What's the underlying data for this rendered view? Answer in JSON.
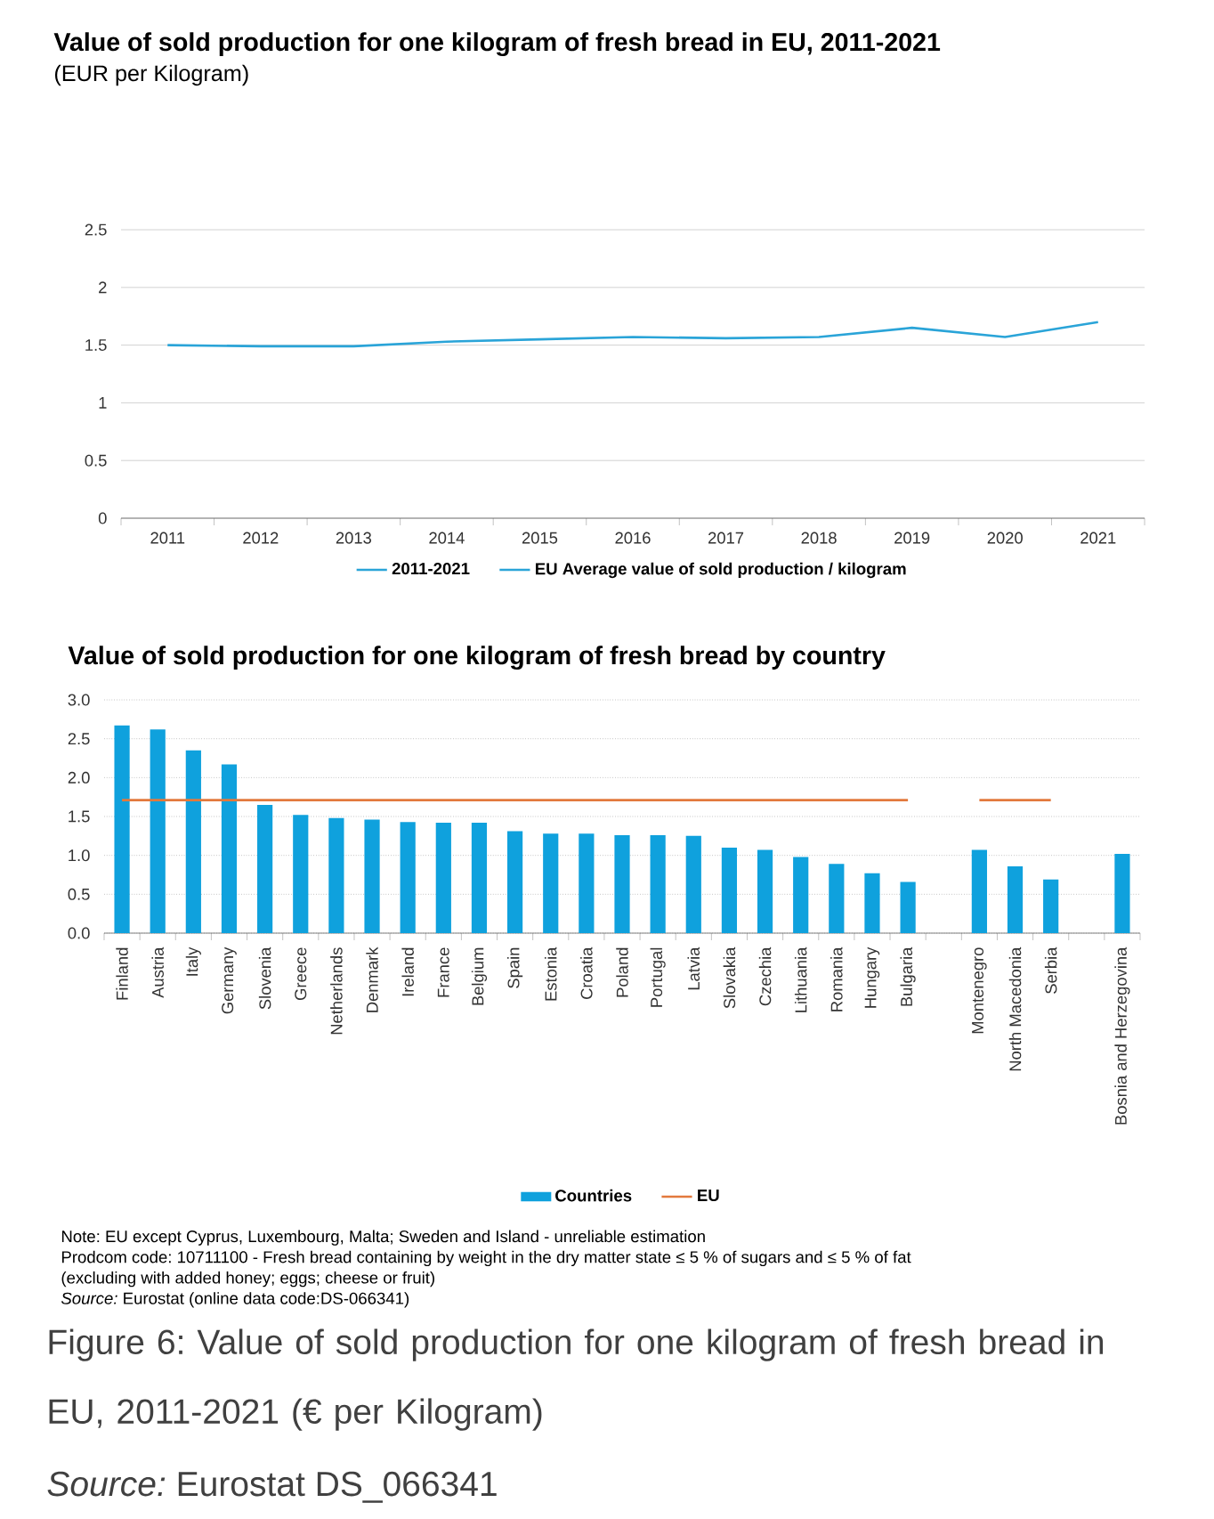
{
  "chart_data": [
    {
      "type": "line",
      "title": "Value of sold production for one kilogram of fresh bread in EU, 2011-2021",
      "subtitle": "(EUR per Kilogram)",
      "categories": [
        "2011",
        "2012",
        "2013",
        "2014",
        "2015",
        "2016",
        "2017",
        "2018",
        "2019",
        "2020",
        "2021"
      ],
      "series": [
        {
          "name": "2011-2021",
          "color": "#2aa4d8",
          "values": [
            null,
            null,
            null,
            null,
            null,
            null,
            null,
            null,
            null,
            null,
            null
          ]
        },
        {
          "name": "EU Average value of sold production / kilogram",
          "color": "#2aa4d8",
          "values": [
            1.5,
            1.49,
            1.49,
            1.53,
            1.55,
            1.57,
            1.56,
            1.57,
            1.65,
            1.57,
            1.7
          ]
        }
      ],
      "ylim": [
        0,
        2.5
      ],
      "yticks": [
        0,
        0.5,
        1,
        1.5,
        2,
        2.5
      ],
      "grid": "y",
      "legend": "bottom"
    },
    {
      "type": "bar",
      "title": "Value of sold production for one kilogram of fresh bread by country",
      "categories": [
        "Finland",
        "Austria",
        "Italy",
        "Germany",
        "Slovenia",
        "Greece",
        "Netherlands",
        "Denmark",
        "Ireland",
        "France",
        "Belgium",
        "Spain",
        "Estonia",
        "Croatia",
        "Poland",
        "Portugal",
        "Latvia",
        "Slovakia",
        "Czechia",
        "Lithuania",
        "Romania",
        "Hungary",
        "Bulgaria",
        null,
        "Montenegro",
        "North Macedonia",
        "Serbia",
        null,
        "Bosnia and Herzegovina"
      ],
      "series": [
        {
          "name": "Countries",
          "type": "bar",
          "color": "#0fa1dd",
          "values": [
            2.67,
            2.62,
            2.35,
            2.17,
            1.65,
            1.52,
            1.48,
            1.46,
            1.43,
            1.42,
            1.42,
            1.31,
            1.28,
            1.28,
            1.26,
            1.26,
            1.25,
            1.1,
            1.07,
            0.98,
            0.89,
            0.77,
            0.66,
            null,
            1.07,
            0.86,
            0.69,
            null,
            1.02
          ]
        },
        {
          "name": "EU",
          "type": "line",
          "color": "#e2793d",
          "values": [
            1.71,
            1.71,
            1.71,
            1.71,
            1.71,
            1.71,
            1.71,
            1.71,
            1.71,
            1.71,
            1.71,
            1.71,
            1.71,
            1.71,
            1.71,
            1.71,
            1.71,
            1.71,
            1.71,
            1.71,
            1.71,
            1.71,
            1.71,
            null,
            1.71,
            1.71,
            1.71,
            null,
            null
          ]
        }
      ],
      "ylim": [
        0,
        3
      ],
      "yticks": [
        {
          "value": 0,
          "label": "0.0"
        },
        0.5,
        {
          "value": 1,
          "label": "1.0"
        },
        1.5,
        {
          "value": 2,
          "label": "2.0"
        },
        2.5,
        {
          "value": 3,
          "label": "3.0"
        }
      ],
      "grid": "y",
      "legend": "bottom",
      "annotations": [
        "Note: EU except Cyprus, Luxembourg, Malta; Sweden and Island - unreliable estimation",
        "Prodcom code: 10711100 - Fresh bread containing by weight in the dry matter state ≤ 5 % of sugars and ≤ 5 % of fat",
        "(excluding with added honey; eggs; cheese or fruit)",
        "*Source:* Eurostat (online data code:DS-066341)",
        "Figure 6: Value of sold production for one kilogram of fresh bread in EU, 2011-2021 (€ per Kilogram)",
        "*Source:* Eurostat DS_066341"
      ]
    }
  ]
}
